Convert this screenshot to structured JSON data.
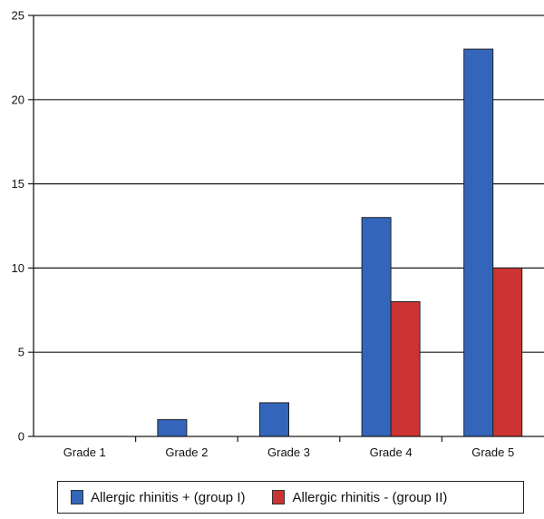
{
  "chart_data": {
    "type": "bar",
    "categories": [
      "Grade 1",
      "Grade 2",
      "Grade 3",
      "Grade 4",
      "Grade 5"
    ],
    "series": [
      {
        "name": "Allergic rhinitis + (group I)",
        "values": [
          0,
          1,
          2,
          13,
          23
        ],
        "color": "#3366bb"
      },
      {
        "name": "Allergic rhinitis - (group II)",
        "values": [
          0,
          0,
          0,
          8,
          10
        ],
        "color": "#cc3333"
      }
    ],
    "y_ticks": [
      "0",
      "5",
      "10",
      "15",
      "20",
      "25"
    ],
    "ylim": [
      0,
      25
    ],
    "grid": true,
    "legend_position": "bottom"
  }
}
